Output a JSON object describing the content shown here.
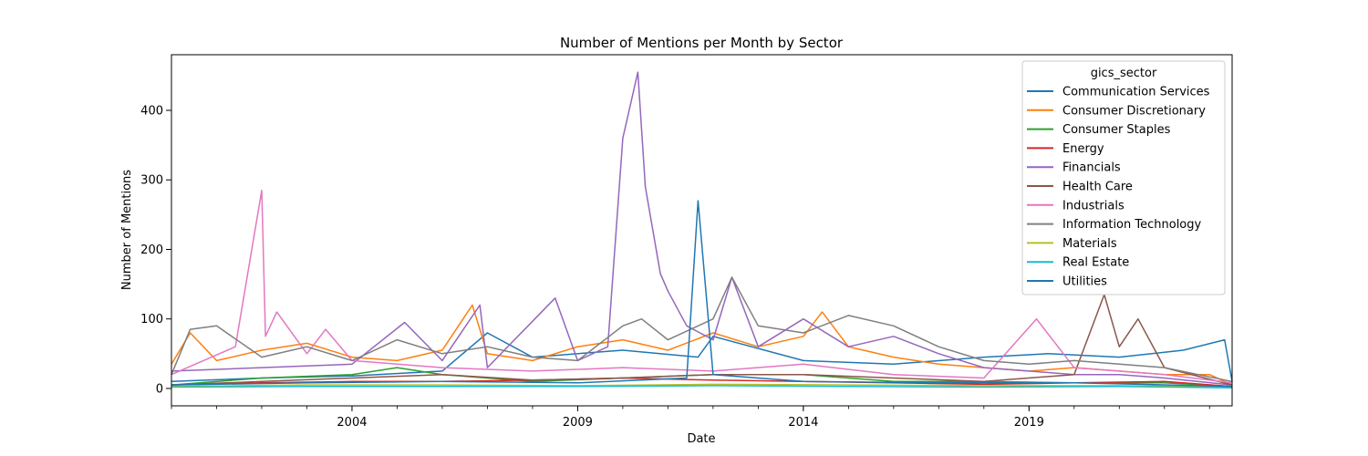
{
  "chart_data": {
    "type": "line",
    "title": "Number of Mentions per Month by Sector",
    "xlabel": "Date",
    "ylabel": "Number of Mentions",
    "xlim": [
      "2000-01",
      "2023-07"
    ],
    "ylim": [
      -25,
      480
    ],
    "x_ticks": [
      {
        "date": "2004-01",
        "label": "2004"
      },
      {
        "date": "2009-01",
        "label": "2009"
      },
      {
        "date": "2014-01",
        "label": "2014"
      },
      {
        "date": "2019-01",
        "label": "2019"
      }
    ],
    "y_ticks": [
      0,
      100,
      200,
      300,
      400
    ],
    "grid": false,
    "legend": {
      "title": "gics_sector",
      "placement": "top-right"
    },
    "series": [
      {
        "name": "Communication Services",
        "color": "#1f77b4",
        "x": [
          "2000-01",
          "2002-01",
          "2004-01",
          "2006-01",
          "2007-01",
          "2008-01",
          "2010-01",
          "2011-09",
          "2012-01",
          "2014-01",
          "2016-01",
          "2018-01",
          "2019-06",
          "2021-01",
          "2022-06",
          "2023-05",
          "2023-07"
        ],
        "values": [
          10,
          15,
          18,
          25,
          80,
          45,
          55,
          45,
          75,
          40,
          35,
          45,
          50,
          45,
          55,
          70,
          10
        ]
      },
      {
        "name": "Consumer Discretionary",
        "color": "#ff7f0e",
        "x": [
          "2000-01",
          "2000-06",
          "2001-01",
          "2002-01",
          "2003-01",
          "2004-01",
          "2005-01",
          "2006-01",
          "2006-09",
          "2007-01",
          "2008-01",
          "2009-01",
          "2010-01",
          "2011-01",
          "2012-01",
          "2013-01",
          "2014-01",
          "2014-06",
          "2015-01",
          "2016-01",
          "2017-01",
          "2018-01",
          "2019-01",
          "2020-01",
          "2021-01",
          "2022-01",
          "2023-01",
          "2023-07"
        ],
        "values": [
          35,
          80,
          40,
          55,
          65,
          45,
          40,
          55,
          120,
          50,
          40,
          60,
          70,
          55,
          80,
          60,
          75,
          110,
          60,
          45,
          35,
          30,
          25,
          30,
          25,
          20,
          20,
          5
        ]
      },
      {
        "name": "Consumer Staples",
        "color": "#2ca02c",
        "x": [
          "2000-01",
          "2002-01",
          "2004-01",
          "2005-01",
          "2006-01",
          "2008-01",
          "2010-01",
          "2012-01",
          "2014-01",
          "2016-01",
          "2018-01",
          "2020-01",
          "2022-01",
          "2023-07"
        ],
        "values": [
          5,
          15,
          20,
          30,
          20,
          10,
          15,
          20,
          20,
          10,
          10,
          8,
          8,
          3
        ]
      },
      {
        "name": "Energy",
        "color": "#d62728",
        "x": [
          "2000-01",
          "2002-01",
          "2004-01",
          "2006-01",
          "2008-01",
          "2010-01",
          "2012-01",
          "2014-01",
          "2016-01",
          "2018-01",
          "2020-01",
          "2022-01",
          "2023-07"
        ],
        "values": [
          5,
          8,
          10,
          10,
          12,
          15,
          12,
          10,
          8,
          6,
          8,
          10,
          3
        ]
      },
      {
        "name": "Financials",
        "color": "#9467bd",
        "x": [
          "2000-01",
          "2002-01",
          "2004-01",
          "2005-03",
          "2006-01",
          "2006-11",
          "2007-01",
          "2008-07",
          "2009-01",
          "2009-09",
          "2010-01",
          "2010-05",
          "2010-07",
          "2010-11",
          "2011-01",
          "2011-06",
          "2012-01",
          "2012-06",
          "2013-01",
          "2014-01",
          "2015-01",
          "2016-01",
          "2017-01",
          "2018-01",
          "2019-01",
          "2020-01",
          "2021-01",
          "2022-01",
          "2023-07"
        ],
        "values": [
          25,
          30,
          35,
          95,
          40,
          120,
          30,
          130,
          40,
          60,
          360,
          455,
          290,
          165,
          140,
          90,
          70,
          160,
          60,
          100,
          60,
          75,
          50,
          30,
          25,
          20,
          20,
          15,
          5
        ]
      },
      {
        "name": "Health Care",
        "color": "#8c564b",
        "x": [
          "2000-01",
          "2002-01",
          "2004-01",
          "2006-01",
          "2008-01",
          "2010-01",
          "2012-01",
          "2014-01",
          "2016-01",
          "2018-01",
          "2020-01",
          "2020-09",
          "2021-01",
          "2021-06",
          "2022-01",
          "2023-07"
        ],
        "values": [
          5,
          10,
          15,
          20,
          12,
          15,
          20,
          20,
          15,
          10,
          20,
          135,
          60,
          100,
          30,
          5
        ]
      },
      {
        "name": "Industrials",
        "color": "#e377c2",
        "x": [
          "2000-01",
          "2001-06",
          "2002-01",
          "2002-02",
          "2002-05",
          "2003-01",
          "2003-06",
          "2004-01",
          "2005-01",
          "2006-01",
          "2008-01",
          "2010-01",
          "2012-01",
          "2014-01",
          "2016-01",
          "2018-01",
          "2019-03",
          "2020-01",
          "2022-01",
          "2023-07"
        ],
        "values": [
          20,
          60,
          285,
          75,
          110,
          50,
          85,
          40,
          35,
          30,
          25,
          30,
          25,
          35,
          20,
          15,
          100,
          30,
          20,
          8
        ]
      },
      {
        "name": "Information Technology",
        "color": "#7f7f7f",
        "x": [
          "2000-01",
          "2000-06",
          "2001-01",
          "2002-01",
          "2003-01",
          "2004-01",
          "2005-01",
          "2006-01",
          "2007-01",
          "2008-01",
          "2009-01",
          "2010-01",
          "2010-06",
          "2011-01",
          "2012-01",
          "2012-06",
          "2013-01",
          "2014-01",
          "2015-01",
          "2016-01",
          "2017-01",
          "2018-01",
          "2019-01",
          "2020-01",
          "2021-01",
          "2022-01",
          "2023-07"
        ],
        "values": [
          20,
          85,
          90,
          45,
          60,
          40,
          70,
          50,
          60,
          45,
          40,
          90,
          100,
          70,
          100,
          160,
          90,
          80,
          105,
          90,
          60,
          40,
          35,
          40,
          35,
          30,
          10
        ]
      },
      {
        "name": "Materials",
        "color": "#bcbd22",
        "x": [
          "2000-01",
          "2003-01",
          "2006-01",
          "2009-01",
          "2012-01",
          "2015-01",
          "2018-01",
          "2021-01",
          "2023-07"
        ],
        "values": [
          3,
          5,
          5,
          4,
          6,
          5,
          4,
          4,
          2
        ]
      },
      {
        "name": "Real Estate",
        "color": "#17becf",
        "x": [
          "2000-01",
          "2003-01",
          "2006-01",
          "2009-01",
          "2012-01",
          "2015-01",
          "2018-01",
          "2021-01",
          "2023-07"
        ],
        "values": [
          2,
          3,
          3,
          3,
          4,
          3,
          2,
          3,
          1
        ]
      },
      {
        "name": "Utilities",
        "color": "#1f77b4",
        "x": [
          "2000-01",
          "2003-01",
          "2006-01",
          "2009-01",
          "2011-06",
          "2011-09",
          "2012-01",
          "2014-01",
          "2017-01",
          "2020-01",
          "2023-07"
        ],
        "values": [
          5,
          8,
          10,
          8,
          15,
          270,
          20,
          10,
          8,
          8,
          3
        ]
      }
    ]
  }
}
